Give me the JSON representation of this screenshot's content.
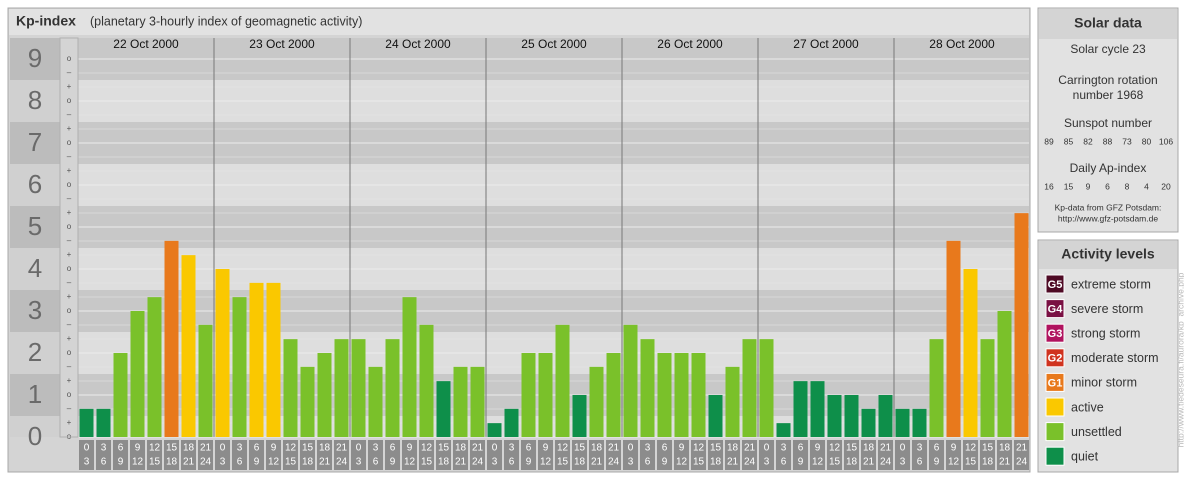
{
  "chart_data": {
    "type": "bar",
    "title": "Kp-index",
    "subtitle": "(planetary 3-hourly index of geomagnetic activity)",
    "days": [
      "22 Oct 2000",
      "23 Oct 2000",
      "24 Oct 2000",
      "25 Oct 2000",
      "26 Oct 2000",
      "27 Oct 2000",
      "28 Oct 2000"
    ],
    "hours": [
      [
        "0",
        "3"
      ],
      [
        "3",
        "6"
      ],
      [
        "6",
        "9"
      ],
      [
        "9",
        "12"
      ],
      [
        "12",
        "15"
      ],
      [
        "15",
        "18"
      ],
      [
        "18",
        "21"
      ],
      [
        "21",
        "24"
      ]
    ],
    "values": [
      0.67,
      0.67,
      2,
      3,
      3.33,
      4.67,
      4.33,
      2.67,
      4,
      3.33,
      3.67,
      3.67,
      2.33,
      1.67,
      2,
      2.33,
      2.33,
      1.67,
      2.33,
      3.33,
      2.67,
      1.33,
      1.67,
      1.67,
      0.33,
      0.67,
      2,
      2,
      2.67,
      1,
      1.67,
      2,
      2.67,
      2.33,
      2,
      2,
      2,
      1,
      1.67,
      2.33,
      2.33,
      0.33,
      1.33,
      1.33,
      1,
      1,
      0.67,
      1,
      0.67,
      0.67,
      2.33,
      4.67,
      4,
      2.33,
      3,
      5.33
    ],
    "colors": [
      "#0e8f4a",
      "#0e8f4a",
      "#7ac12a",
      "#7ac12a",
      "#7ac12a",
      "#e8791c",
      "#fac800",
      "#7ac12a",
      "#fac800",
      "#7ac12a",
      "#fac800",
      "#fac800",
      "#7ac12a",
      "#7ac12a",
      "#7ac12a",
      "#7ac12a",
      "#7ac12a",
      "#7ac12a",
      "#7ac12a",
      "#7ac12a",
      "#7ac12a",
      "#0e8f4a",
      "#7ac12a",
      "#7ac12a",
      "#0e8f4a",
      "#0e8f4a",
      "#7ac12a",
      "#7ac12a",
      "#7ac12a",
      "#0e8f4a",
      "#7ac12a",
      "#7ac12a",
      "#7ac12a",
      "#7ac12a",
      "#7ac12a",
      "#7ac12a",
      "#7ac12a",
      "#0e8f4a",
      "#7ac12a",
      "#7ac12a",
      "#7ac12a",
      "#0e8f4a",
      "#0e8f4a",
      "#0e8f4a",
      "#0e8f4a",
      "#0e8f4a",
      "#0e8f4a",
      "#0e8f4a",
      "#0e8f4a",
      "#0e8f4a",
      "#7ac12a",
      "#e8791c",
      "#fac800",
      "#7ac12a",
      "#7ac12a",
      "#e8791c"
    ],
    "ylim": [
      0,
      9.5
    ],
    "yticks": [
      0,
      1,
      2,
      3,
      4,
      5,
      6,
      7,
      8,
      9
    ],
    "minor_tick_labels": [
      "–",
      "o",
      "+"
    ]
  },
  "solar": {
    "title": "Solar data",
    "cycle": "Solar cycle 23",
    "carrington": [
      "Carrington rotation",
      "number 1968"
    ],
    "sunspot_label": "Sunspot number",
    "sunspot": [
      89,
      85,
      82,
      88,
      73,
      80,
      106
    ],
    "ap_label": "Daily Ap-index",
    "ap": [
      16,
      15,
      9,
      6,
      8,
      4,
      20
    ],
    "source": [
      "Kp-data from GFZ Potsdam:",
      "http://www.gfz-potsdam.de"
    ]
  },
  "levels": {
    "title": "Activity levels",
    "items": [
      {
        "badge": "G5",
        "label": "extreme storm",
        "color": "#4e0a24"
      },
      {
        "badge": "G4",
        "label": "severe storm",
        "color": "#7a1043"
      },
      {
        "badge": "G3",
        "label": "strong storm",
        "color": "#b0125e"
      },
      {
        "badge": "G2",
        "label": "moderate storm",
        "color": "#d0331f"
      },
      {
        "badge": "G1",
        "label": "minor storm",
        "color": "#e8791c"
      },
      {
        "label": "active",
        "color": "#fac800"
      },
      {
        "label": "unsettled",
        "color": "#7ac12a"
      },
      {
        "label": "quiet",
        "color": "#0e8f4a"
      }
    ]
  },
  "credit": "http://www.tiedeseura.fi/aurora/kp_archive.php"
}
